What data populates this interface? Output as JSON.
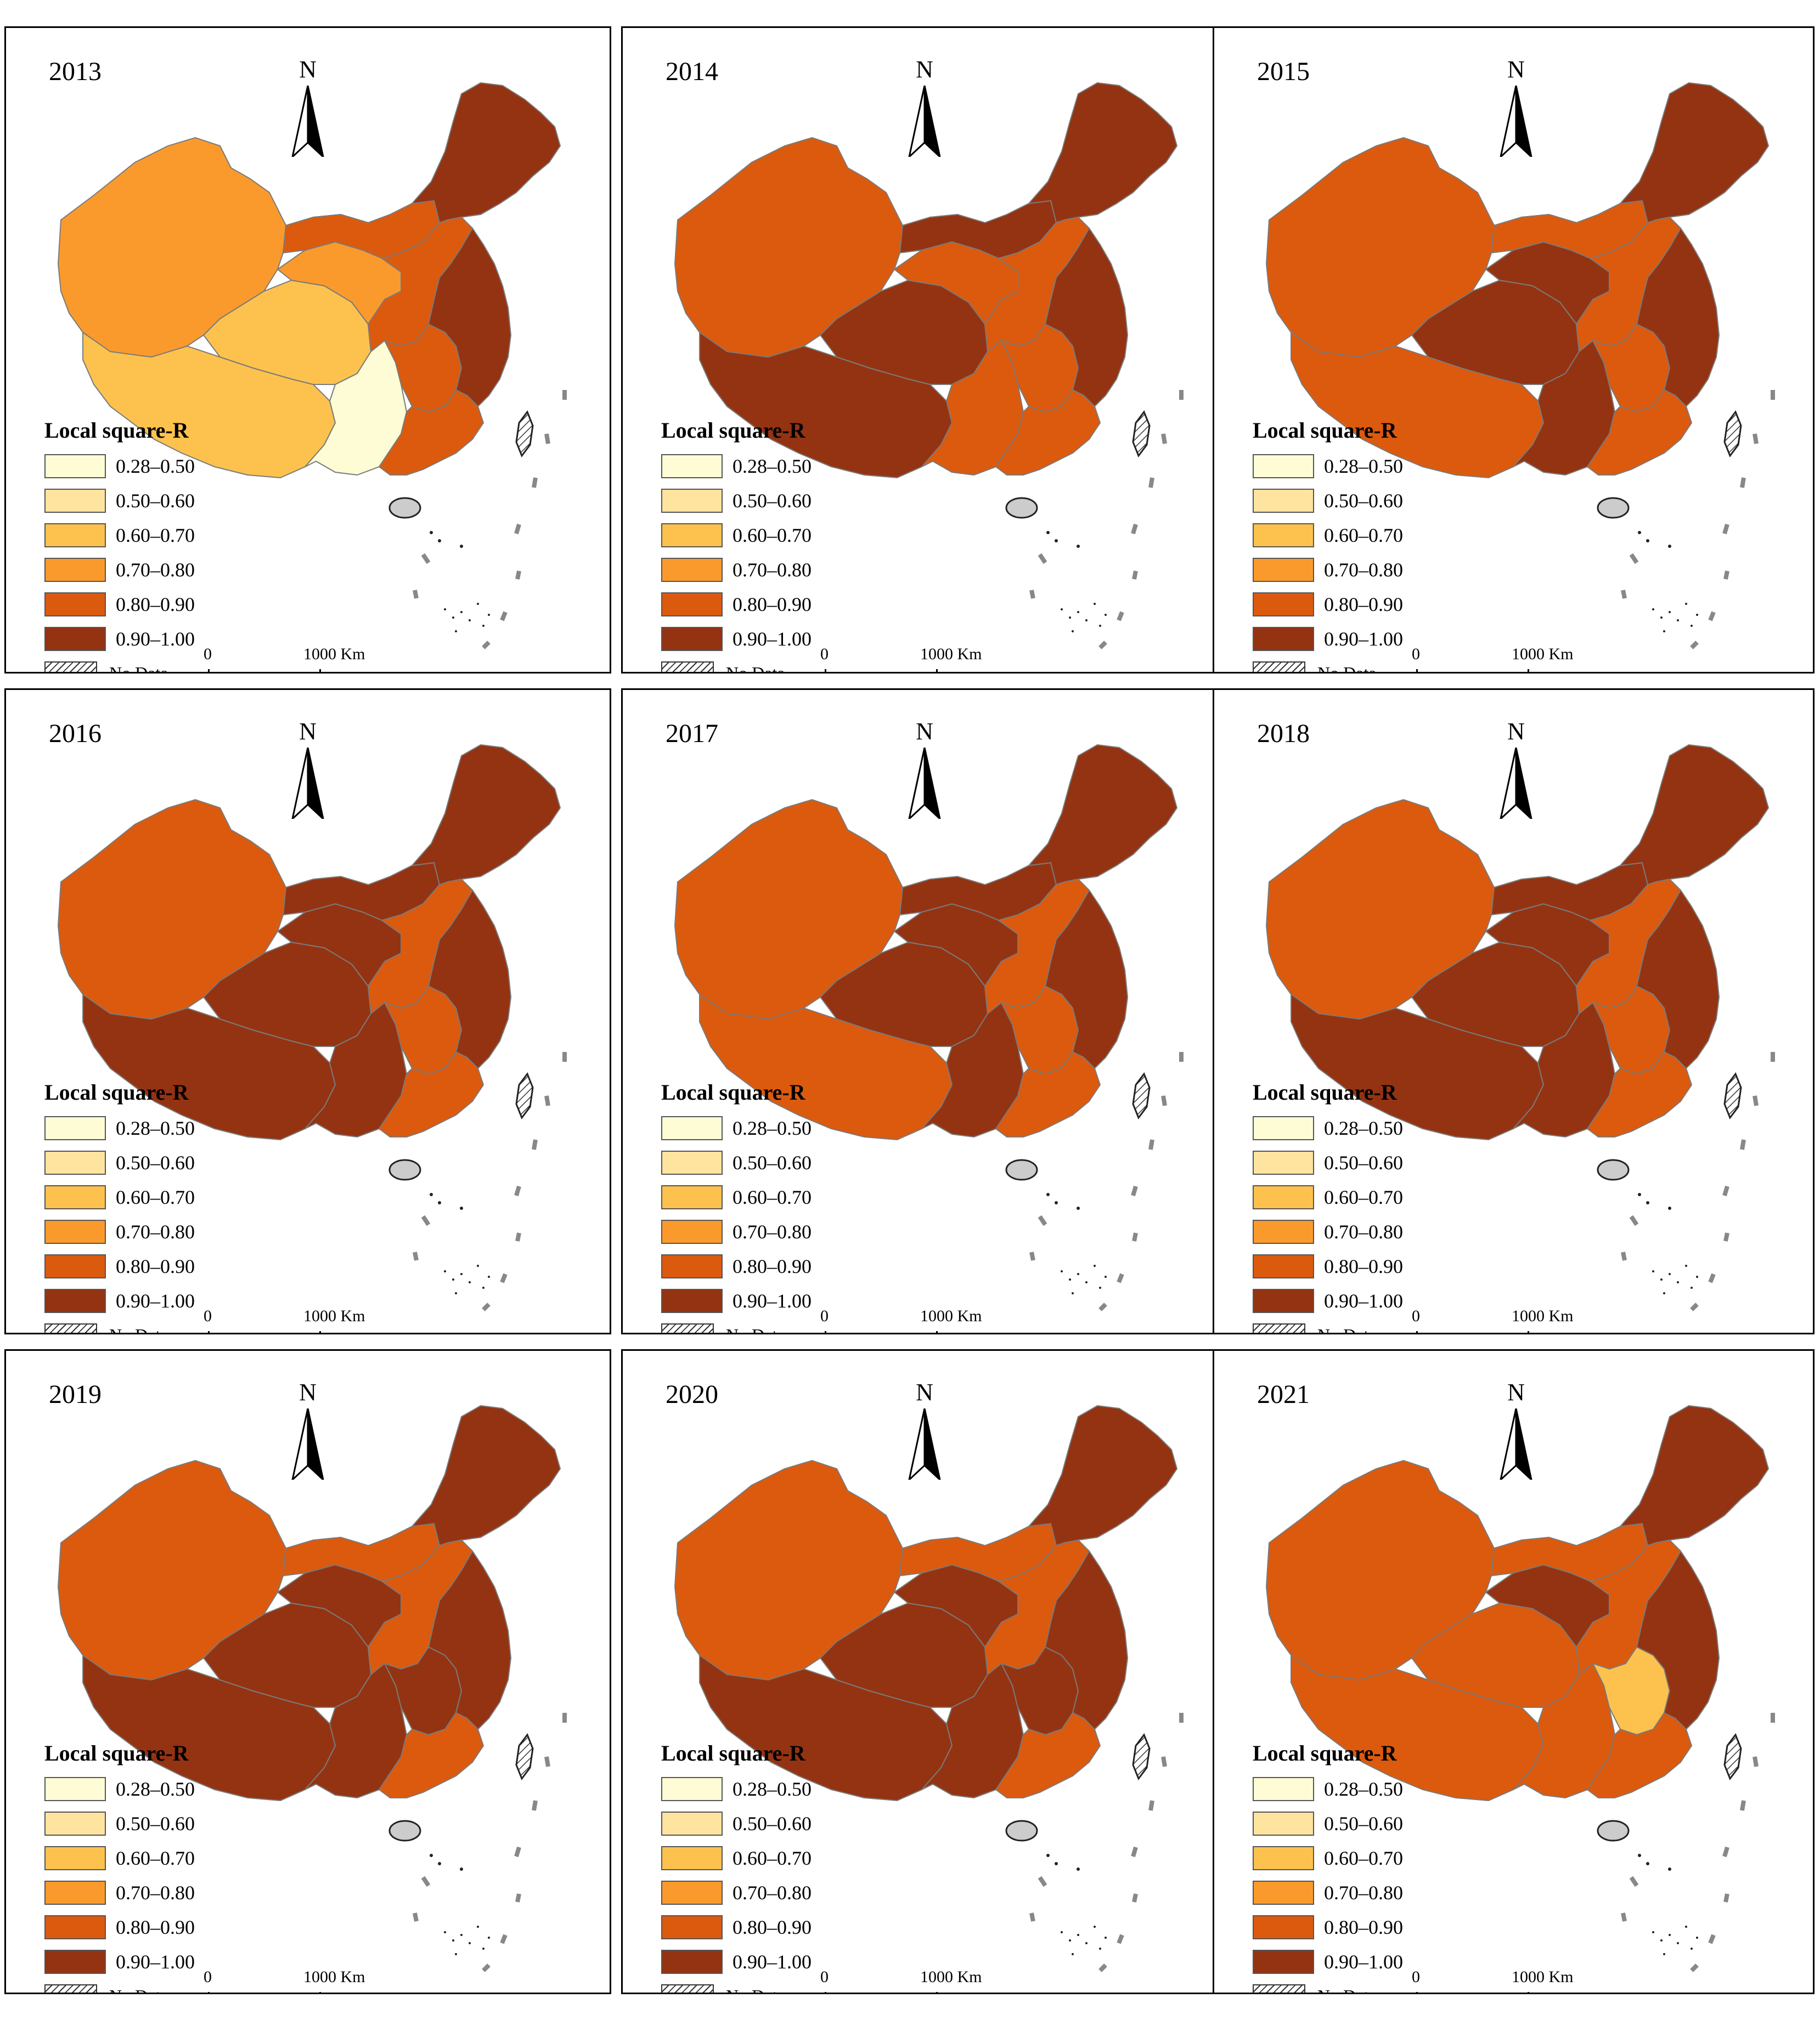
{
  "legend": {
    "title": "Local square-R",
    "classes": [
      {
        "label": "0.28–0.50",
        "color": "#fefcd4"
      },
      {
        "label": "0.50–0.60",
        "color": "#fee49e"
      },
      {
        "label": "0.60–0.70",
        "color": "#fdc24e"
      },
      {
        "label": "0.70–0.80",
        "color": "#fb9a2c"
      },
      {
        "label": "0.80–0.90",
        "color": "#dc5a0e"
      },
      {
        "label": "0.90–1.00",
        "color": "#943312"
      }
    ],
    "no_data_label": "No Data"
  },
  "north_label": "N",
  "scale": {
    "start": "0",
    "end": "1000",
    "unit": "Km"
  },
  "panels": [
    {
      "year": "2013",
      "regions": {
        "xinjiang": 3,
        "tibet": 2,
        "qinghai": 2,
        "southwest": 0,
        "gansu": 3,
        "north_central": 4,
        "northeast": 5,
        "inner_mongolia_west": 4,
        "east": 5,
        "south": 4,
        "central": 4
      }
    },
    {
      "year": "2014",
      "regions": {
        "xinjiang": 4,
        "tibet": 5,
        "qinghai": 5,
        "southwest": 4,
        "gansu": 4,
        "north_central": 4,
        "northeast": 5,
        "inner_mongolia_west": 5,
        "east": 5,
        "south": 4,
        "central": 4
      }
    },
    {
      "year": "2015",
      "regions": {
        "xinjiang": 4,
        "tibet": 4,
        "qinghai": 5,
        "southwest": 5,
        "gansu": 5,
        "north_central": 4,
        "northeast": 5,
        "inner_mongolia_west": 4,
        "east": 5,
        "south": 4,
        "central": 4
      }
    },
    {
      "year": "2016",
      "regions": {
        "xinjiang": 4,
        "tibet": 5,
        "qinghai": 5,
        "southwest": 5,
        "gansu": 5,
        "north_central": 4,
        "northeast": 5,
        "inner_mongolia_west": 5,
        "east": 5,
        "south": 4,
        "central": 4
      }
    },
    {
      "year": "2017",
      "regions": {
        "xinjiang": 4,
        "tibet": 4,
        "qinghai": 5,
        "southwest": 5,
        "gansu": 5,
        "north_central": 4,
        "northeast": 5,
        "inner_mongolia_west": 5,
        "east": 5,
        "south": 4,
        "central": 4
      }
    },
    {
      "year": "2018",
      "regions": {
        "xinjiang": 4,
        "tibet": 5,
        "qinghai": 5,
        "southwest": 5,
        "gansu": 5,
        "north_central": 4,
        "northeast": 5,
        "inner_mongolia_west": 5,
        "east": 5,
        "south": 4,
        "central": 4
      }
    },
    {
      "year": "2019",
      "regions": {
        "xinjiang": 4,
        "tibet": 5,
        "qinghai": 5,
        "southwest": 5,
        "gansu": 5,
        "north_central": 4,
        "northeast": 5,
        "inner_mongolia_west": 4,
        "east": 5,
        "south": 4,
        "central": 5
      }
    },
    {
      "year": "2020",
      "regions": {
        "xinjiang": 4,
        "tibet": 5,
        "qinghai": 5,
        "southwest": 5,
        "gansu": 5,
        "north_central": 4,
        "northeast": 5,
        "inner_mongolia_west": 4,
        "east": 5,
        "south": 4,
        "central": 5
      }
    },
    {
      "year": "2021",
      "regions": {
        "xinjiang": 4,
        "tibet": 4,
        "qinghai": 4,
        "southwest": 4,
        "gansu": 5,
        "north_central": 4,
        "northeast": 5,
        "inner_mongolia_west": 4,
        "east": 5,
        "south": 4,
        "central": 2
      }
    }
  ]
}
